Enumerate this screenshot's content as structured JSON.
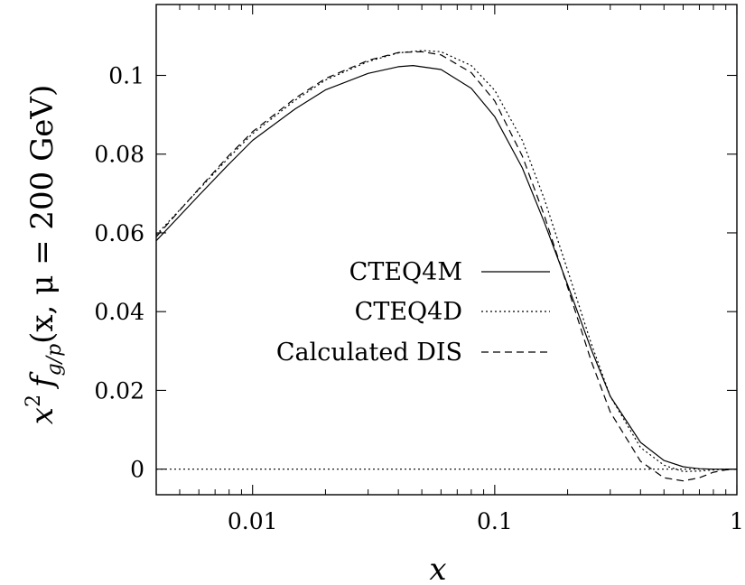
{
  "chart_data": {
    "type": "line",
    "xscale": "log",
    "xlim": [
      0.004,
      1
    ],
    "ylim": [
      -0.0065,
      0.118
    ],
    "xticks": [
      {
        "value": 0.01,
        "label": "0.01"
      },
      {
        "value": 0.1,
        "label": "0.1"
      },
      {
        "value": 1,
        "label": "1"
      }
    ],
    "yticks": [
      {
        "value": 0,
        "label": "0"
      },
      {
        "value": 0.02,
        "label": "0.02"
      },
      {
        "value": 0.04,
        "label": "0.04"
      },
      {
        "value": 0.06,
        "label": "0.06"
      },
      {
        "value": 0.08,
        "label": "0.08"
      },
      {
        "value": 0.1,
        "label": "0.1"
      }
    ],
    "xlabel": "x",
    "ylabel": "x² f_g/p(x, μ = 200 GeV)",
    "ylabel_parts": {
      "x": "x",
      "sup": "2",
      "f": "f",
      "sub": "g/p",
      "args": "(x, μ = 200 GeV)"
    },
    "grid": false,
    "legend_position": "center",
    "zero_line": true,
    "series": [
      {
        "name": "CTEQ4M",
        "style": "solid",
        "x": [
          0.004,
          0.006,
          0.008,
          0.01,
          0.015,
          0.02,
          0.03,
          0.04,
          0.046,
          0.06,
          0.08,
          0.1,
          0.13,
          0.16,
          0.2,
          0.25,
          0.3,
          0.4,
          0.5,
          0.6,
          0.7,
          0.8,
          0.9,
          1.0
        ],
        "y": [
          0.058,
          0.0695,
          0.0775,
          0.0835,
          0.0915,
          0.0963,
          0.1005,
          0.1022,
          0.1025,
          0.1015,
          0.0967,
          0.0895,
          0.0765,
          0.0628,
          0.0468,
          0.0305,
          0.0185,
          0.0068,
          0.0022,
          0.0006,
          0.0001,
          0.0,
          0.0,
          0.0
        ]
      },
      {
        "name": "CTEQ4D",
        "style": "dotted",
        "x": [
          0.004,
          0.006,
          0.008,
          0.01,
          0.015,
          0.02,
          0.03,
          0.04,
          0.05,
          0.06,
          0.08,
          0.1,
          0.13,
          0.16,
          0.2,
          0.25,
          0.3,
          0.4,
          0.5,
          0.6,
          0.7,
          0.8,
          0.9,
          1.0
        ],
        "y": [
          0.0595,
          0.071,
          0.0792,
          0.0852,
          0.0937,
          0.0988,
          0.1035,
          0.1057,
          0.1063,
          0.106,
          0.1025,
          0.0962,
          0.0835,
          0.0687,
          0.0505,
          0.032,
          0.0185,
          0.0055,
          0.001,
          -0.0006,
          -0.0005,
          -0.0002,
          0.0,
          0.0
        ]
      },
      {
        "name": "Calculated DIS",
        "style": "dashed",
        "x": [
          0.004,
          0.006,
          0.008,
          0.01,
          0.015,
          0.02,
          0.03,
          0.04,
          0.05,
          0.06,
          0.08,
          0.1,
          0.13,
          0.16,
          0.2,
          0.25,
          0.3,
          0.4,
          0.5,
          0.6,
          0.7,
          0.8,
          0.9,
          1.0
        ],
        "y": [
          0.059,
          0.0712,
          0.0797,
          0.0857,
          0.0942,
          0.0992,
          0.1038,
          0.1058,
          0.106,
          0.1052,
          0.1007,
          0.0935,
          0.0795,
          0.0645,
          0.0462,
          0.0275,
          0.0145,
          0.002,
          -0.0022,
          -0.003,
          -0.0022,
          -0.0008,
          -0.0002,
          0.0
        ]
      }
    ]
  }
}
